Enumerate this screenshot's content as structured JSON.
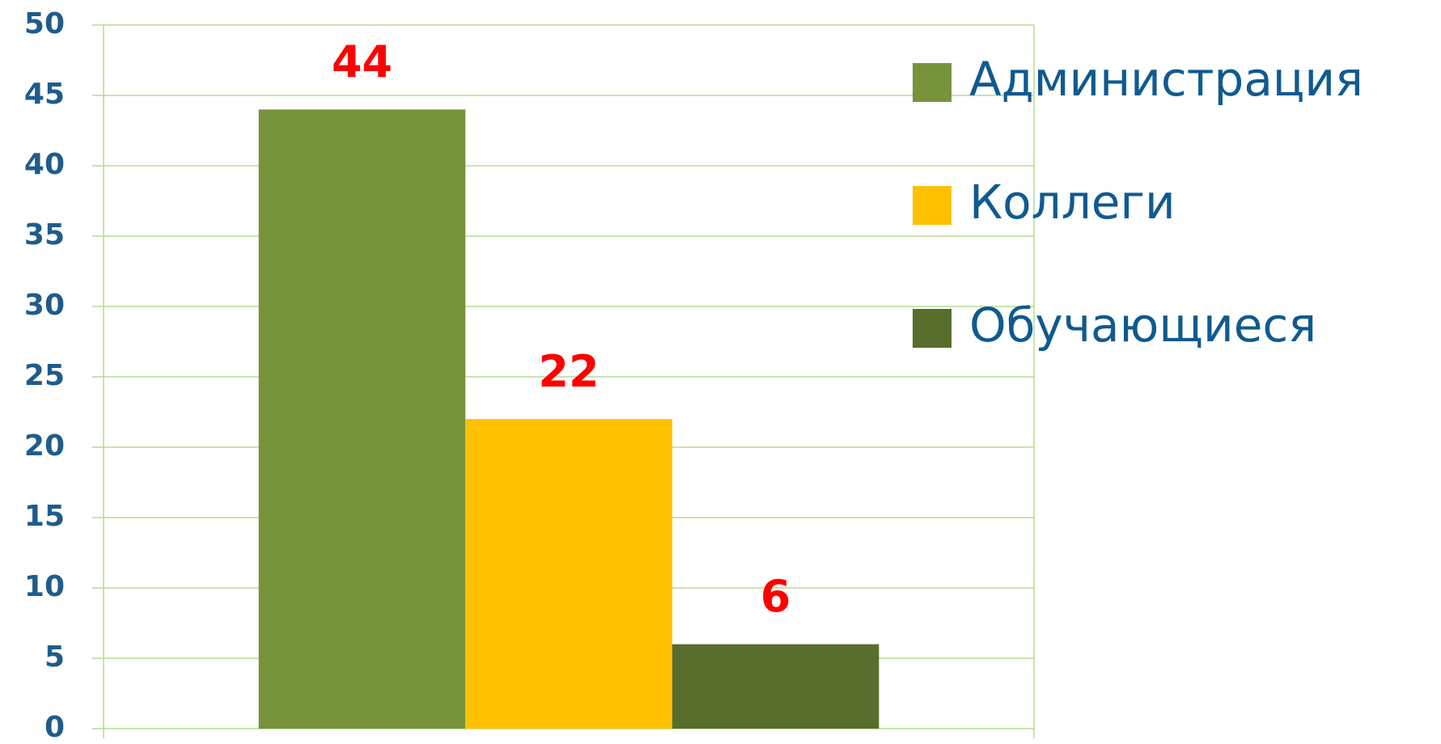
{
  "chart_data": {
    "type": "bar",
    "categories": [
      null
    ],
    "series": [
      {
        "name": "Администрация",
        "color": "#77933c",
        "values": [
          44
        ]
      },
      {
        "name": "Коллеги",
        "color": "#ffc000",
        "values": [
          22
        ]
      },
      {
        "name": "Обучающиеся",
        "color": "#576e2c",
        "values": [
          6
        ]
      }
    ],
    "ylim": [
      0,
      50
    ],
    "yticks": [
      0,
      5,
      10,
      15,
      20,
      25,
      30,
      35,
      40,
      45,
      50
    ],
    "grid": true,
    "legend": "right",
    "value_label_color": "#ff0000"
  }
}
